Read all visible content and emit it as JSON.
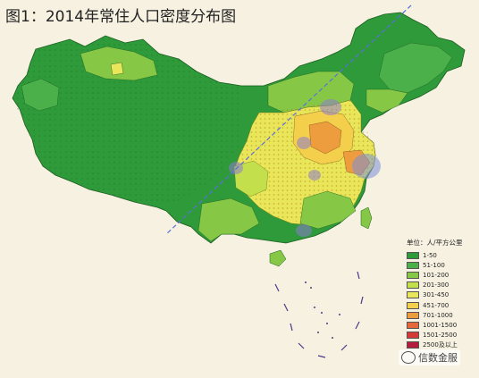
{
  "title": "图1：2014年常住人口密度分布图",
  "legend": {
    "title": "单位：人/平方公里",
    "items": [
      {
        "label": "1-50",
        "color": "#2e9a3a"
      },
      {
        "label": "51-100",
        "color": "#4cb04a"
      },
      {
        "label": "101-200",
        "color": "#86c846"
      },
      {
        "label": "201-300",
        "color": "#c4df4c"
      },
      {
        "label": "301-450",
        "color": "#eae65a"
      },
      {
        "label": "451-700",
        "color": "#f4cf4c"
      },
      {
        "label": "701-1000",
        "color": "#ee9d3e"
      },
      {
        "label": "1001-1500",
        "color": "#e4683a"
      },
      {
        "label": "1501-2500",
        "color": "#d43a36"
      },
      {
        "label": "2500及以上",
        "color": "#b51e3a"
      }
    ]
  },
  "watermark": {
    "icon": "wechat-icon",
    "text": "信数金服"
  }
}
